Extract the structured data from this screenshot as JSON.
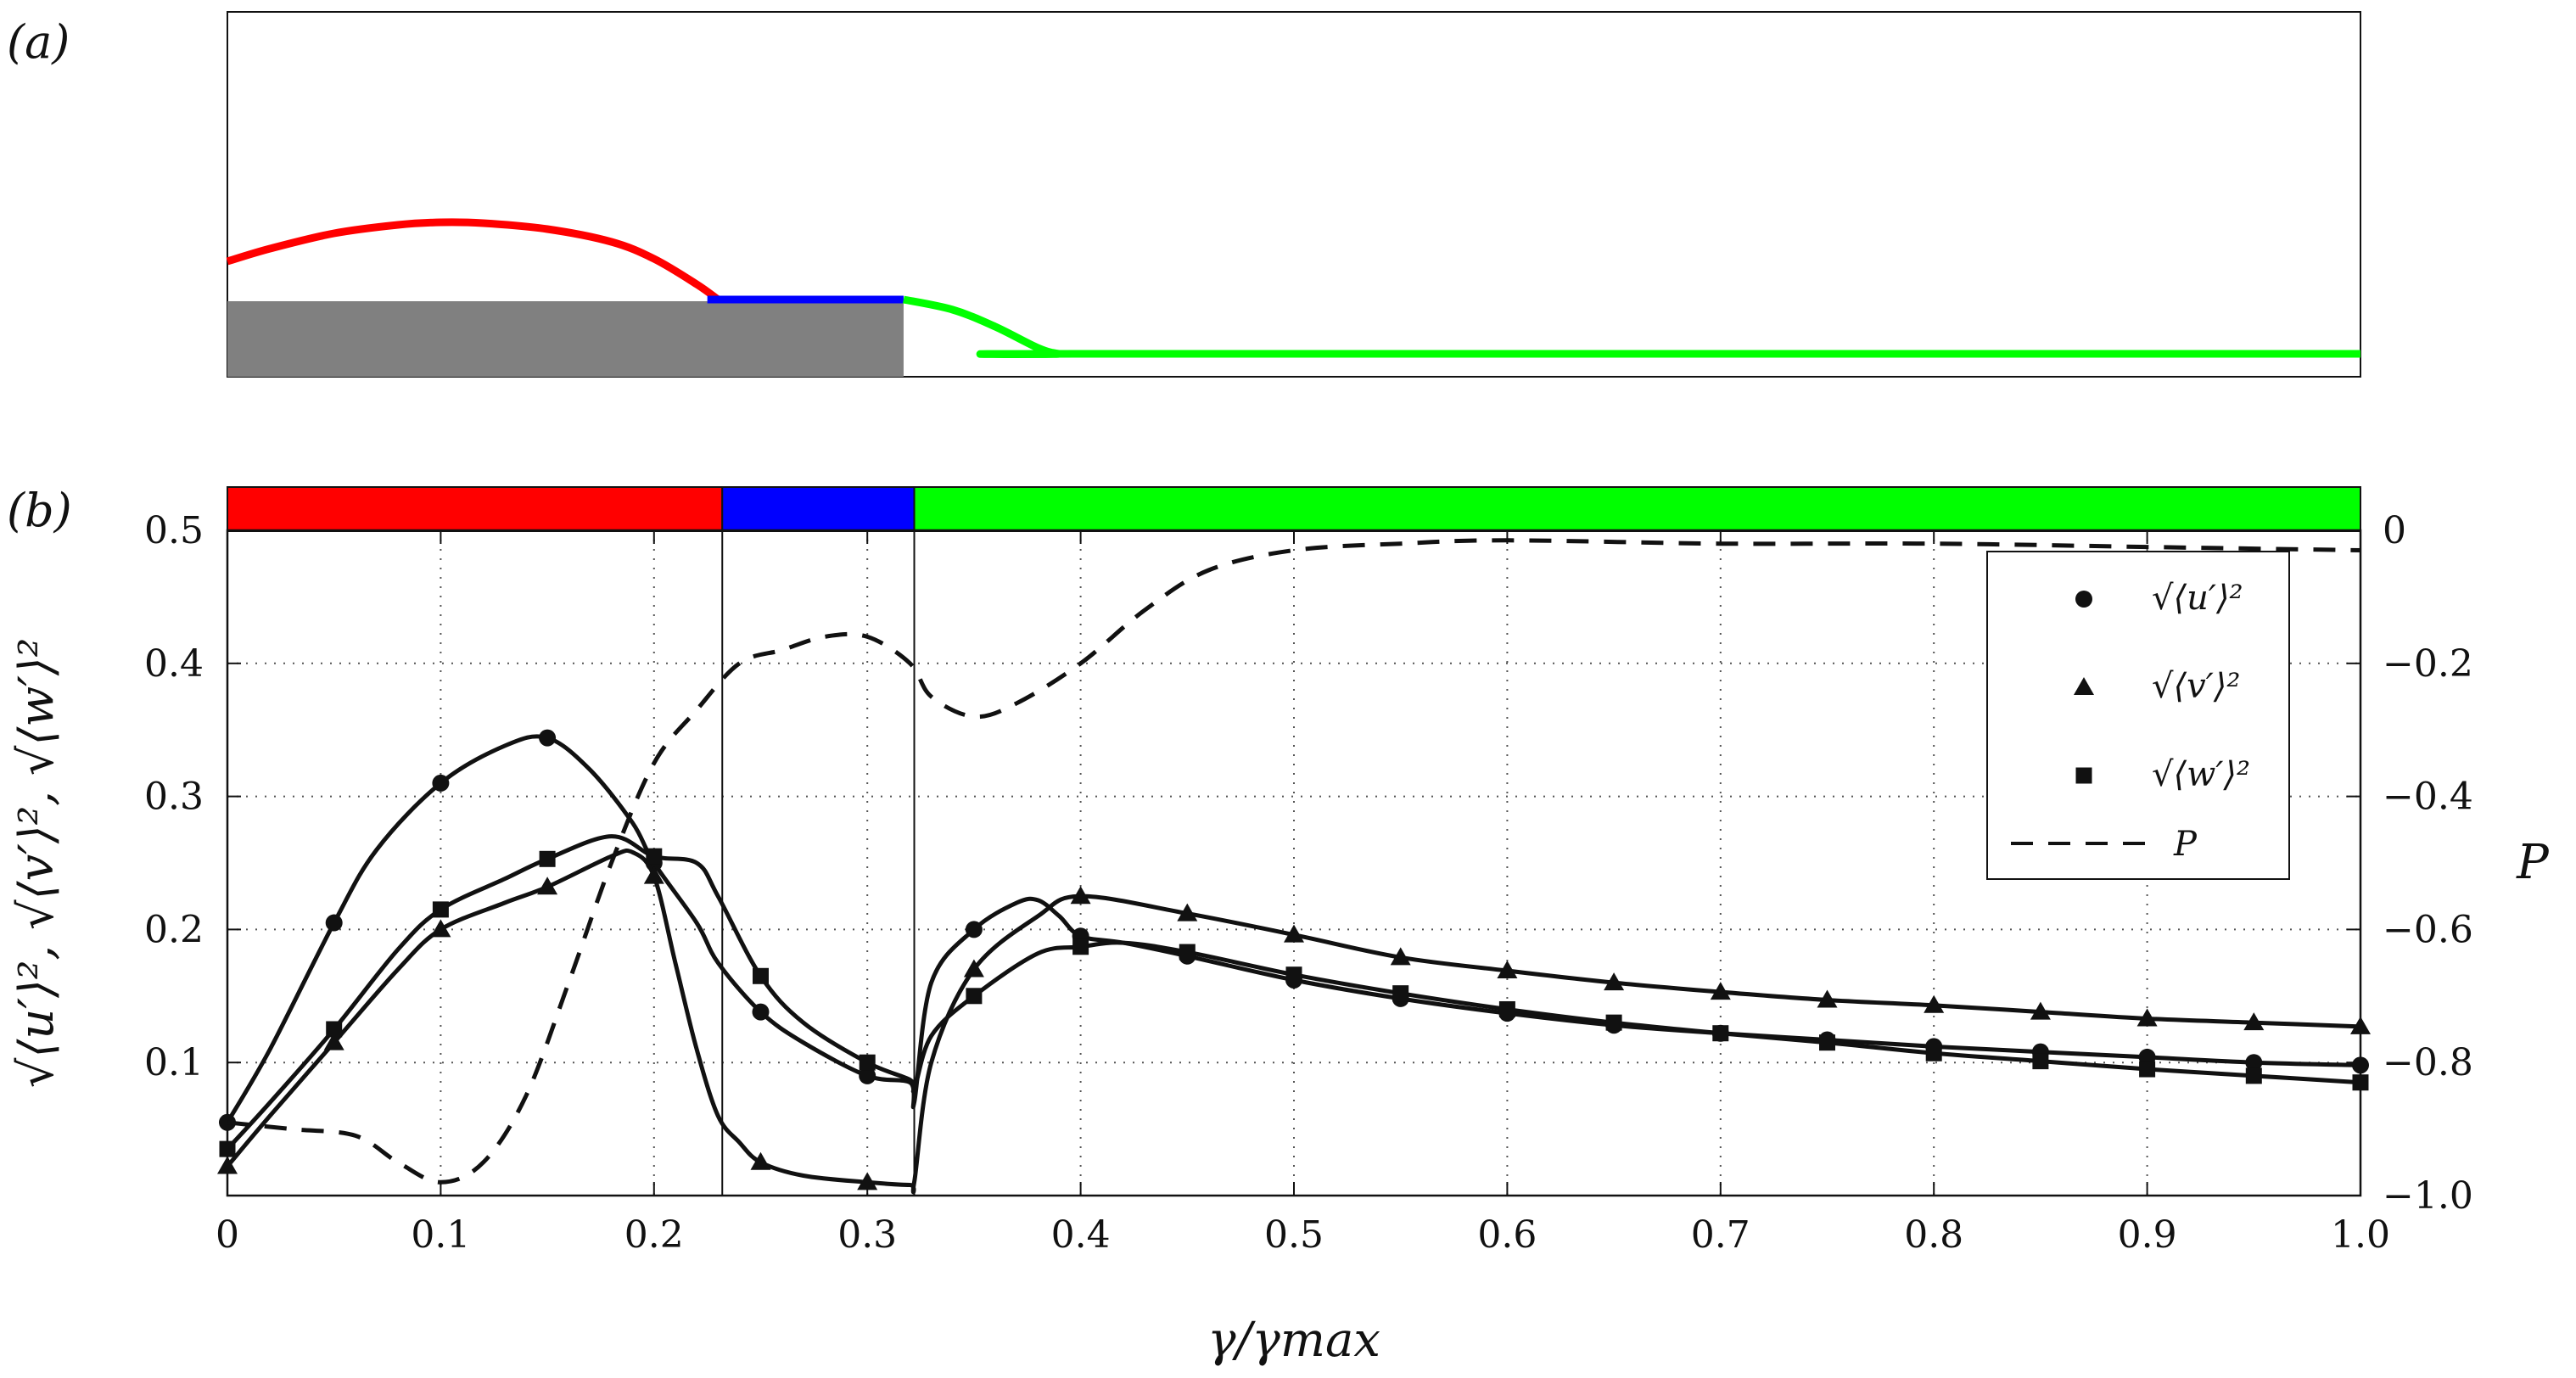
{
  "panel_labels": {
    "a": "(a)",
    "b": "(b)"
  },
  "colors": {
    "region1": "#ff0000",
    "region2": "#0000ff",
    "region3": "#00ff00",
    "wall": "#808080",
    "series": "#111111"
  },
  "chart_data": [
    {
      "type": "schematic",
      "panel": "(a)",
      "description_free": true,
      "x_range": [
        0,
        1
      ],
      "wall_end_x": 0.317,
      "red_curve": {
        "x": [
          0,
          0.02,
          0.05,
          0.08,
          0.1,
          0.12,
          0.15,
          0.18,
          0.2,
          0.22,
          0.23
        ],
        "h": [
          0.47,
          0.62,
          0.8,
          0.9,
          0.93,
          0.92,
          0.85,
          0.7,
          0.5,
          0.2,
          0.02
        ]
      },
      "blue_curve": {
        "x": [
          0.225,
          0.317
        ],
        "h": [
          0.02,
          0.02
        ]
      },
      "green_curve": {
        "x": [
          0.317,
          0.34,
          0.36,
          0.38,
          0.39,
          0.4,
          1.0
        ],
        "h": [
          0.02,
          -0.1,
          -0.3,
          -0.55,
          -0.62,
          -0.62,
          -0.62
        ]
      }
    },
    {
      "type": "line",
      "panel": "(b)",
      "xlabel": "γ/γmax",
      "ylabel": "√⟨u′⟩², √⟨v′⟩², √⟨w′⟩²",
      "y2label": "P",
      "xlim": [
        0,
        1.0
      ],
      "ylim": [
        0.0,
        0.5
      ],
      "y2lim": [
        -1.0,
        0
      ],
      "x_ticks": [
        0,
        0.1,
        0.2,
        0.3,
        0.4,
        0.5,
        0.6,
        0.7,
        0.8,
        0.9,
        1.0
      ],
      "x_tick_labels": [
        "0",
        "0.1",
        "0.2",
        "0.3",
        "0.4",
        "0.5",
        "0.6",
        "0.7",
        "0.8",
        "0.9",
        "1.0"
      ],
      "y_ticks": [
        0.1,
        0.2,
        0.3,
        0.4,
        0.5
      ],
      "y_tick_labels": [
        "0.1",
        "0.2",
        "0.3",
        "0.4",
        "0.5"
      ],
      "y2_ticks": [
        -1.0,
        -0.8,
        -0.6,
        -0.4,
        -0.2,
        0
      ],
      "y2_tick_labels": [
        "−1.0",
        "−0.8",
        "−0.6",
        "−0.4",
        "−0.2",
        "0"
      ],
      "grid": true,
      "legend_position": "top-right",
      "region_bar": [
        {
          "from": 0,
          "to": 0.232,
          "color": "#ff0000"
        },
        {
          "from": 0.232,
          "to": 0.322,
          "color": "#0000ff"
        },
        {
          "from": 0.322,
          "to": 1.0,
          "color": "#00ff00"
        }
      ],
      "region_boundaries": [
        0.232,
        0.322
      ],
      "series": [
        {
          "name": "√⟨u′⟩²",
          "marker": "circle",
          "axis": "left",
          "x": [
            0,
            0.02,
            0.05,
            0.07,
            0.1,
            0.13,
            0.15,
            0.17,
            0.19,
            0.2,
            0.22,
            0.23,
            0.25,
            0.27,
            0.3,
            0.32,
            0.322,
            0.33,
            0.35,
            0.37,
            0.38,
            0.39,
            0.4,
            0.42,
            0.45,
            0.5,
            0.55,
            0.6,
            0.65,
            0.7,
            0.75,
            0.8,
            0.85,
            0.9,
            0.95,
            1.0
          ],
          "y": [
            0.055,
            0.11,
            0.205,
            0.26,
            0.31,
            0.338,
            0.344,
            0.32,
            0.28,
            0.25,
            0.205,
            0.175,
            0.138,
            0.115,
            0.09,
            0.085,
            0.07,
            0.16,
            0.2,
            0.22,
            0.222,
            0.21,
            0.195,
            0.19,
            0.18,
            0.162,
            0.148,
            0.137,
            0.128,
            0.122,
            0.117,
            0.112,
            0.108,
            0.104,
            0.1,
            0.098
          ],
          "markers_x": [
            0,
            0.05,
            0.1,
            0.15,
            0.2,
            0.25,
            0.3,
            0.35,
            0.4,
            0.45,
            0.5,
            0.55,
            0.6,
            0.65,
            0.7,
            0.75,
            0.8,
            0.85,
            0.9,
            0.95,
            1.0
          ],
          "markers_y": [
            0.055,
            0.205,
            0.31,
            0.344,
            0.25,
            0.138,
            0.09,
            0.2,
            0.195,
            0.18,
            0.162,
            0.148,
            0.137,
            0.128,
            0.122,
            0.117,
            0.112,
            0.108,
            0.104,
            0.1,
            0.098
          ]
        },
        {
          "name": "√⟨v′⟩²",
          "marker": "triangle",
          "axis": "left",
          "x": [
            0,
            0.02,
            0.05,
            0.08,
            0.1,
            0.13,
            0.15,
            0.18,
            0.19,
            0.2,
            0.21,
            0.22,
            0.23,
            0.24,
            0.25,
            0.27,
            0.3,
            0.32,
            0.322,
            0.33,
            0.35,
            0.38,
            0.4,
            0.45,
            0.5,
            0.55,
            0.6,
            0.65,
            0.7,
            0.75,
            0.8,
            0.85,
            0.9,
            0.95,
            1.0
          ],
          "y": [
            0.022,
            0.06,
            0.115,
            0.17,
            0.2,
            0.22,
            0.232,
            0.255,
            0.258,
            0.24,
            0.175,
            0.11,
            0.06,
            0.04,
            0.025,
            0.015,
            0.01,
            0.008,
            0.01,
            0.1,
            0.17,
            0.21,
            0.225,
            0.212,
            0.196,
            0.179,
            0.169,
            0.16,
            0.153,
            0.147,
            0.143,
            0.138,
            0.133,
            0.13,
            0.127
          ],
          "markers_x": [
            0,
            0.05,
            0.1,
            0.15,
            0.2,
            0.25,
            0.3,
            0.35,
            0.4,
            0.45,
            0.5,
            0.55,
            0.6,
            0.65,
            0.7,
            0.75,
            0.8,
            0.85,
            0.9,
            0.95,
            1.0
          ],
          "markers_y": [
            0.022,
            0.115,
            0.2,
            0.232,
            0.24,
            0.025,
            0.01,
            0.17,
            0.225,
            0.212,
            0.196,
            0.179,
            0.169,
            0.16,
            0.153,
            0.147,
            0.143,
            0.138,
            0.133,
            0.13,
            0.127
          ]
        },
        {
          "name": "√⟨w′⟩²",
          "marker": "square",
          "axis": "left",
          "x": [
            0,
            0.02,
            0.05,
            0.08,
            0.1,
            0.13,
            0.15,
            0.18,
            0.2,
            0.22,
            0.23,
            0.25,
            0.27,
            0.3,
            0.32,
            0.322,
            0.33,
            0.35,
            0.38,
            0.4,
            0.42,
            0.45,
            0.5,
            0.55,
            0.6,
            0.65,
            0.7,
            0.75,
            0.8,
            0.85,
            0.9,
            0.95,
            1.0
          ],
          "y": [
            0.035,
            0.07,
            0.125,
            0.185,
            0.215,
            0.238,
            0.253,
            0.27,
            0.255,
            0.25,
            0.225,
            0.165,
            0.13,
            0.1,
            0.087,
            0.08,
            0.12,
            0.15,
            0.182,
            0.187,
            0.19,
            0.183,
            0.166,
            0.152,
            0.14,
            0.13,
            0.122,
            0.115,
            0.107,
            0.101,
            0.095,
            0.09,
            0.085
          ],
          "markers_x": [
            0,
            0.05,
            0.1,
            0.15,
            0.2,
            0.25,
            0.3,
            0.35,
            0.4,
            0.45,
            0.5,
            0.55,
            0.6,
            0.65,
            0.7,
            0.75,
            0.8,
            0.85,
            0.9,
            0.95,
            1.0
          ],
          "markers_y": [
            0.035,
            0.125,
            0.215,
            0.253,
            0.255,
            0.165,
            0.1,
            0.15,
            0.187,
            0.183,
            0.166,
            0.152,
            0.14,
            0.13,
            0.122,
            0.115,
            0.107,
            0.101,
            0.095,
            0.09,
            0.085
          ]
        },
        {
          "name": "P",
          "marker": "none",
          "line": "dashed",
          "axis": "right",
          "x": [
            0,
            0.03,
            0.06,
            0.08,
            0.1,
            0.12,
            0.14,
            0.16,
            0.18,
            0.2,
            0.22,
            0.24,
            0.26,
            0.28,
            0.3,
            0.32,
            0.33,
            0.35,
            0.37,
            0.4,
            0.43,
            0.46,
            0.5,
            0.55,
            0.6,
            0.7,
            0.8,
            0.9,
            1.0
          ],
          "y": [
            -0.89,
            -0.9,
            -0.91,
            -0.95,
            -0.98,
            -0.95,
            -0.85,
            -0.68,
            -0.5,
            -0.35,
            -0.27,
            -0.2,
            -0.18,
            -0.16,
            -0.16,
            -0.2,
            -0.25,
            -0.28,
            -0.26,
            -0.2,
            -0.12,
            -0.06,
            -0.03,
            -0.02,
            -0.015,
            -0.02,
            -0.02,
            -0.025,
            -0.03
          ]
        }
      ]
    }
  ]
}
